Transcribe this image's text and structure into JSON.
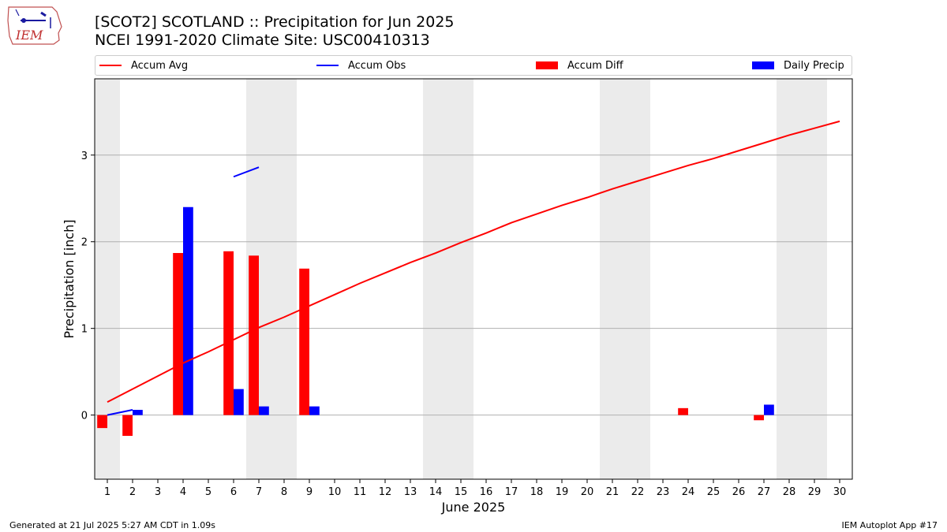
{
  "logo": {
    "text": "IEM"
  },
  "header": {
    "title": "[SCOT2] SCOTLAND :: Precipitation for Jun 2025",
    "subtitle": "NCEI 1991-2020 Climate Site: USC00410313"
  },
  "legend": {
    "placement": "top",
    "items": [
      {
        "label": "Accum Avg",
        "type": "line",
        "color": "#ff0000"
      },
      {
        "label": "Accum Obs",
        "type": "line",
        "color": "#0000ff"
      },
      {
        "label": "Accum Diff",
        "type": "bar",
        "color": "#ff0000"
      },
      {
        "label": "Daily Precip",
        "type": "bar",
        "color": "#0000ff"
      }
    ]
  },
  "footer": {
    "left": "Generated at 21 Jul 2025 5:27 AM CDT in 1.09s",
    "right": "IEM Autoplot App #17"
  },
  "chart_data": {
    "type": "bar",
    "xlabel": "June 2025",
    "ylabel": "Precipitation [inch]",
    "x": [
      1,
      2,
      3,
      4,
      5,
      6,
      7,
      8,
      9,
      10,
      11,
      12,
      13,
      14,
      15,
      16,
      17,
      18,
      19,
      20,
      21,
      22,
      23,
      24,
      25,
      26,
      27,
      28,
      29,
      30
    ],
    "xlim": [
      0.5,
      30.5
    ],
    "ylim": [
      -0.74,
      3.88
    ],
    "yticks": [
      0,
      1,
      2,
      3
    ],
    "grid": "y",
    "weekend_days": [
      1,
      7,
      8,
      14,
      15,
      21,
      22,
      28,
      29
    ],
    "weekend_shade_color": "#ebebeb",
    "series": [
      {
        "name": "Accum Avg",
        "kind": "line",
        "color": "#ff0000",
        "values": [
          0.15,
          0.3,
          0.45,
          0.6,
          0.73,
          0.87,
          1.01,
          1.13,
          1.26,
          1.39,
          1.52,
          1.64,
          1.76,
          1.87,
          1.99,
          2.1,
          2.22,
          2.32,
          2.42,
          2.51,
          2.61,
          2.7,
          2.79,
          2.88,
          2.96,
          3.05,
          3.14,
          3.23,
          3.31,
          3.39
        ]
      },
      {
        "name": "Accum Obs",
        "kind": "line",
        "color": "#0000ff",
        "segments": [
          {
            "x": [
              1,
              2
            ],
            "y": [
              0.0,
              0.06
            ]
          },
          {
            "x": [
              6,
              7
            ],
            "y": [
              2.75,
              2.86
            ]
          }
        ]
      },
      {
        "name": "Accum Diff",
        "kind": "bar",
        "color": "#ff0000",
        "points": [
          {
            "x": 1,
            "y": -0.15
          },
          {
            "x": 2,
            "y": -0.24
          },
          {
            "x": 4,
            "y": 1.87
          },
          {
            "x": 6,
            "y": 1.89
          },
          {
            "x": 7,
            "y": 1.84
          },
          {
            "x": 9,
            "y": 1.69
          },
          {
            "x": 24,
            "y": 0.08
          },
          {
            "x": 27,
            "y": -0.06
          }
        ]
      },
      {
        "name": "Daily Precip",
        "kind": "bar",
        "color": "#0000ff",
        "points": [
          {
            "x": 2,
            "y": 0.06
          },
          {
            "x": 4,
            "y": 2.4
          },
          {
            "x": 6,
            "y": 0.3
          },
          {
            "x": 7,
            "y": 0.1
          },
          {
            "x": 9,
            "y": 0.1
          },
          {
            "x": 27,
            "y": 0.12
          }
        ]
      }
    ]
  }
}
